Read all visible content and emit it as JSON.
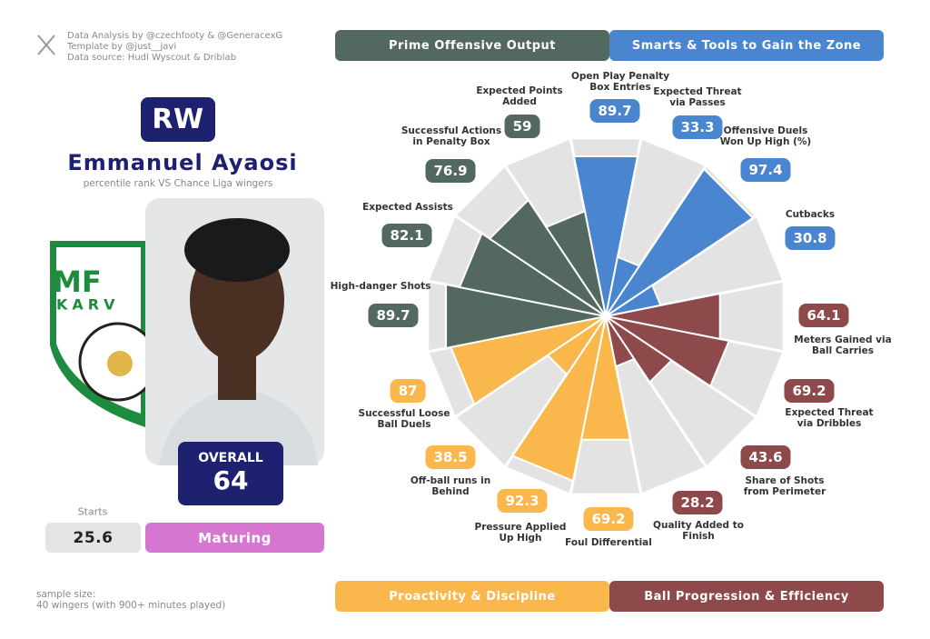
{
  "credits": [
    "Data Analysis by @czechfooty & @GeneracexG",
    "Template by @just__javi",
    "Data source: Hudl Wyscout & Driblab"
  ],
  "player": {
    "position": "RW",
    "name": "Emmanuel Ayaosi",
    "subtitle": "percentile rank VS Chance Liga wingers",
    "overall_label": "OVERALL",
    "overall": "64",
    "starts_label": "Starts",
    "starts": "25.6",
    "status": "Maturing"
  },
  "sample": [
    "sample size:",
    "40 wingers (with 900+ minutes played)"
  ],
  "chart_data": {
    "type": "polar_bar",
    "ylim": [
      0,
      100
    ],
    "series": [
      {
        "name": "Smarts & Tools to Gain the Zone",
        "color": "#4a86cf",
        "categories": [
          "Open Play Penalty Box Entries",
          "Expected Threat via Passes",
          "Offensive Duels Won Up High (%)",
          "Cutbacks"
        ],
        "values": [
          89.7,
          33.3,
          97.4,
          30.8
        ]
      },
      {
        "name": "Ball Progression & Efficiency",
        "color": "#8e4a4a",
        "categories": [
          "Meters Gained via Ball Carries",
          "Expected Threat via Dribbles",
          "Share of Shots from Perimeter",
          "Quality Added to Finish"
        ],
        "values": [
          64.1,
          69.2,
          43.6,
          28.2
        ]
      },
      {
        "name": "Proactivity & Discipline",
        "color": "#f9b74c",
        "categories": [
          "Foul Differential",
          "Pressure Applied Up High",
          "Off-ball runs in Behind",
          "Successful Loose Ball Duels"
        ],
        "values": [
          69.2,
          92.3,
          38.5,
          87
        ]
      },
      {
        "name": "Prime Offensive Output",
        "color": "#53695f",
        "categories": [
          "High-danger Shots",
          "Expected Assists",
          "Successful Actions in Penalty Box",
          "Expected Points Added"
        ],
        "values": [
          89.7,
          82.1,
          76.9,
          59
        ]
      }
    ]
  }
}
